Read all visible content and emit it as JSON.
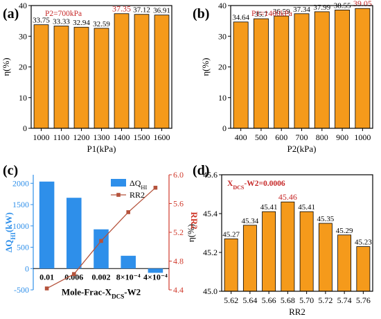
{
  "chart_data": [
    {
      "panel": "(a)",
      "type": "bar",
      "annotation": "P2=700kPa",
      "categories": [
        "1000",
        "1100",
        "1200",
        "1300",
        "1400",
        "1500",
        "1600"
      ],
      "values": [
        33.75,
        33.33,
        32.94,
        32.59,
        37.35,
        37.12,
        36.91
      ],
      "value_labels": [
        "33.75",
        "33.33",
        "32.94",
        "32.59",
        "37.35",
        "37.12",
        "36.91"
      ],
      "highlight_index": 4,
      "xlabel": "P1(kPa)",
      "ylabel": "η(%)",
      "ylim": [
        0,
        40
      ],
      "yticks": [
        "0",
        "10",
        "20",
        "30",
        "40"
      ],
      "colors": {
        "bar": "#f59a1b",
        "bar_edge": "#000000",
        "highlight_text": "#c62828"
      }
    },
    {
      "panel": "(b)",
      "type": "bar",
      "annotation": "P1=1400kPa",
      "categories": [
        "400",
        "500",
        "600",
        "700",
        "800",
        "900",
        "1000"
      ],
      "values": [
        34.64,
        35.7,
        36.59,
        37.34,
        37.99,
        38.55,
        39.05
      ],
      "value_labels": [
        "34.64",
        "35.7",
        "36.59",
        "37.34",
        "37.99",
        "38.55",
        "39.05"
      ],
      "highlight_index": 6,
      "xlabel": "P2(kPa)",
      "ylabel": "η(%)",
      "ylim": [
        0,
        40
      ],
      "yticks": [
        "0",
        "10",
        "20",
        "30",
        "40"
      ],
      "colors": {
        "bar": "#f59a1b",
        "bar_edge": "#000000",
        "highlight_text": "#c62828"
      }
    },
    {
      "panel": "(c)",
      "type": "bar+line",
      "categories": [
        "0.01",
        "0.006",
        "0.002",
        "8×10⁻⁴",
        "4×10⁻⁴"
      ],
      "series": [
        {
          "name": "ΔQ_HI",
          "type": "bar",
          "axis": "left",
          "values": [
            2040,
            1660,
            920,
            300,
            -100
          ]
        },
        {
          "name": "RR2",
          "type": "line",
          "axis": "right",
          "values": [
            4.42,
            4.62,
            5.08,
            5.48,
            5.82
          ]
        }
      ],
      "legend": {
        "position": "top-right",
        "entries": [
          {
            "main": "ΔQ",
            "sub": "HI"
          },
          {
            "main": "RR2",
            "sub": ""
          }
        ]
      },
      "xlabel": {
        "main": "Mole-Frac-X",
        "sub": "DCS",
        "suffix": "-W2"
      },
      "ylabel_left": {
        "main": "ΔQ",
        "sub": "HI",
        "suffix": "(kW)"
      },
      "ylabel_right": "RR2",
      "ylim_left": [
        -500,
        2200
      ],
      "ylim_right": [
        4.4,
        6.0
      ],
      "yticks_left": [
        "-500",
        "0",
        "500",
        "1000",
        "1500",
        "2000"
      ],
      "yticks_right": [
        "4.4",
        "4.8",
        "5.2",
        "5.6",
        "6.0"
      ],
      "colors": {
        "bar": "#2e8fea",
        "line": "#b5523b",
        "left_axis": "#2e8fea",
        "right_axis": "#d03a2c"
      }
    },
    {
      "panel": "(d)",
      "type": "bar",
      "annotation": {
        "main": "X",
        "sub": "DCS",
        "suffix": "-W2=0.0006"
      },
      "categories": [
        "5.62",
        "5.64",
        "5.66",
        "5.68",
        "5.70",
        "5.72",
        "5.74",
        "5.76"
      ],
      "values": [
        45.27,
        45.34,
        45.41,
        45.46,
        45.41,
        45.35,
        45.29,
        45.23
      ],
      "value_labels": [
        "45.27",
        "45.34",
        "45.41",
        "45.46",
        "45.41",
        "45.35",
        "45.29",
        "45.23"
      ],
      "highlight_index": 3,
      "xlabel": "RR2",
      "ylabel": "η(%)",
      "ylim": [
        45.0,
        45.6
      ],
      "yticks": [
        "45.0",
        "45.2",
        "45.4",
        "45.6"
      ],
      "colors": {
        "bar": "#f59a1b",
        "bar_edge": "#000000",
        "highlight_text": "#c62828"
      }
    }
  ]
}
